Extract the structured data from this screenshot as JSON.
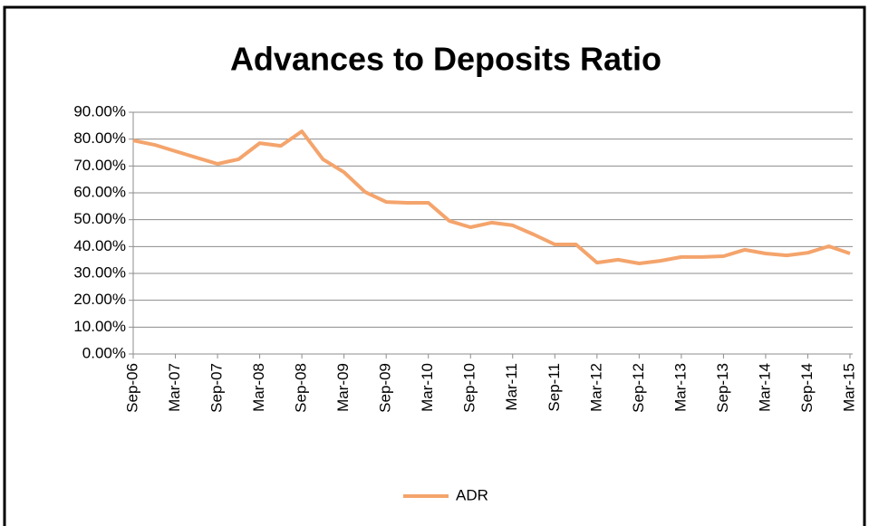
{
  "chart_data": {
    "type": "line",
    "title": "Advances to Deposits Ratio",
    "categories": [
      "Sep-06",
      null,
      "Mar-07",
      null,
      "Sep-07",
      null,
      "Mar-08",
      null,
      "Sep-08",
      null,
      "Mar-09",
      null,
      "Sep-09",
      null,
      "Mar-10",
      null,
      "Sep-10",
      null,
      "Mar-11",
      null,
      "Sep-11",
      null,
      "Mar-12",
      null,
      "Sep-12",
      null,
      "Mar-13",
      null,
      "Sep-13",
      null,
      "Mar-14",
      null,
      "Sep-14",
      null,
      "Mar-15"
    ],
    "series": [
      {
        "name": "ADR",
        "color": "#f4a46c",
        "values": [
          79.5,
          77.9,
          75.5,
          73.1,
          70.8,
          72.5,
          78.5,
          77.5,
          82.9,
          72.5,
          67.7,
          60.3,
          56.6,
          56.3,
          56.3,
          49.5,
          47.2,
          48.9,
          47.9,
          44.5,
          40.8,
          40.8,
          34.0,
          35.1,
          33.7,
          34.7,
          36.1,
          36.1,
          36.4,
          38.8,
          37.4,
          36.7,
          37.7,
          40.1,
          37.4
        ]
      }
    ],
    "ylim": [
      0,
      90
    ],
    "yticks": [
      {
        "value": 0,
        "label": "0.00%"
      },
      {
        "value": 10,
        "label": "10.00%"
      },
      {
        "value": 20,
        "label": "20.00%"
      },
      {
        "value": 30,
        "label": "30.00%"
      },
      {
        "value": 40,
        "label": "40.00%"
      },
      {
        "value": 50,
        "label": "50.00%"
      },
      {
        "value": 60,
        "label": "60.00%"
      },
      {
        "value": 70,
        "label": "70.00%"
      },
      {
        "value": 80,
        "label": "80.00%"
      },
      {
        "value": 90,
        "label": "90.00%"
      }
    ],
    "grid": true,
    "legend": "bottom"
  }
}
